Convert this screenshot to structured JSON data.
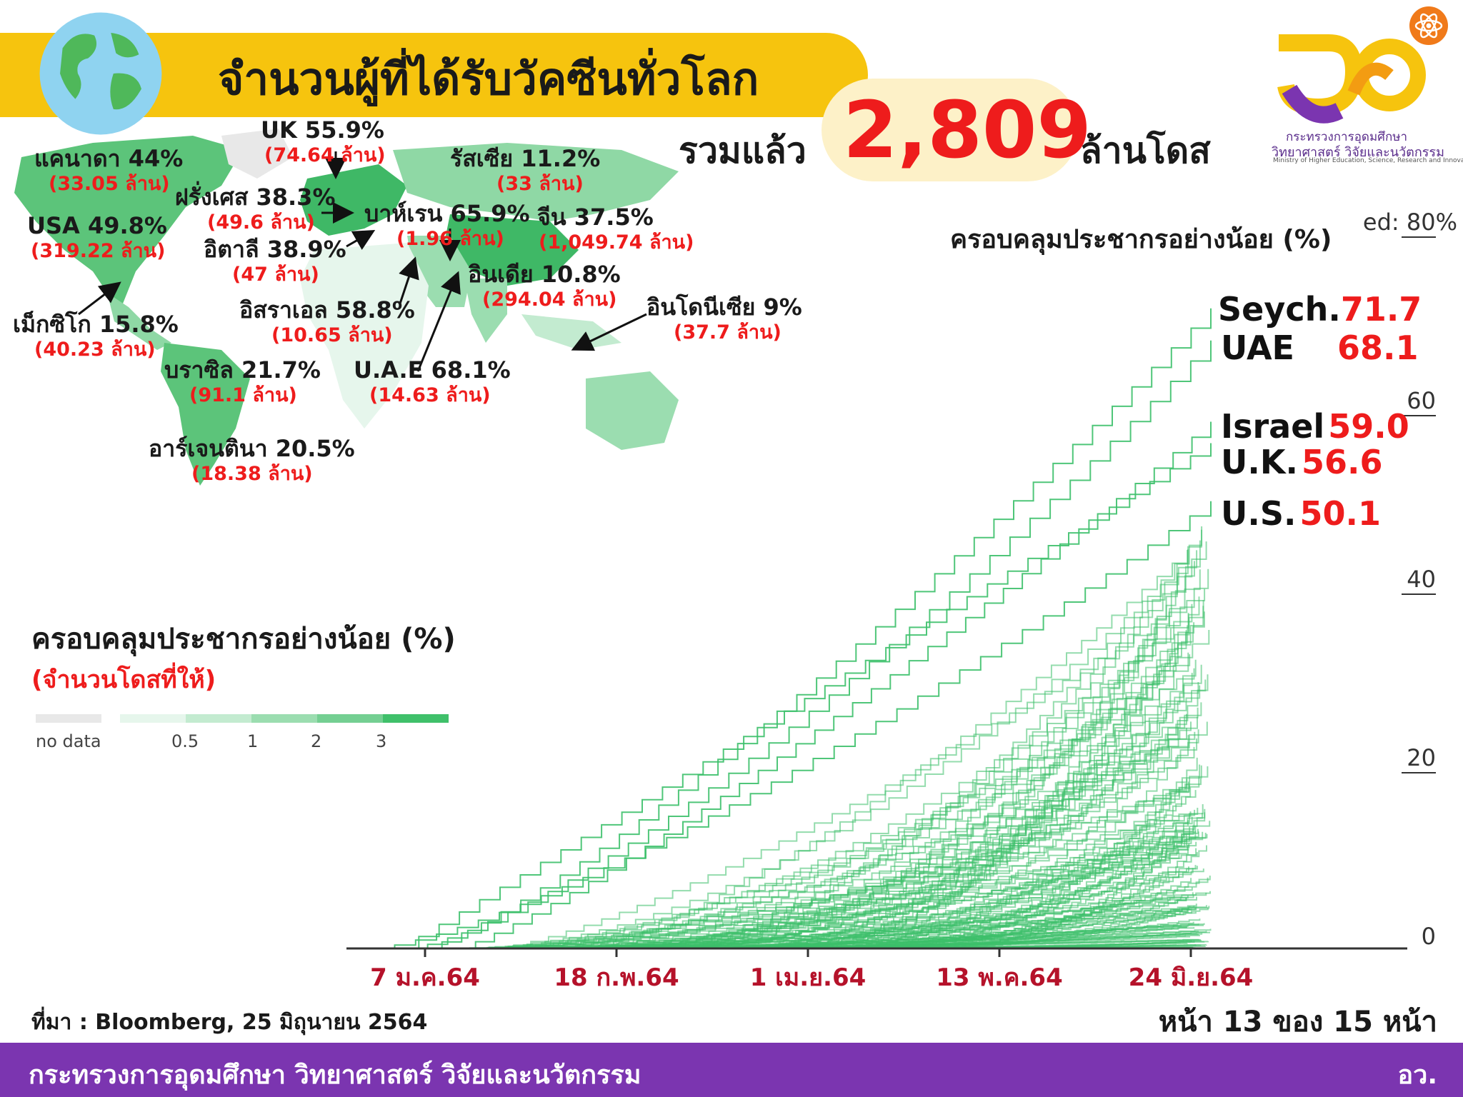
{
  "header": {
    "title": "จำนวนผู้ที่ได้รับวัคซีนทั่วโลก",
    "total_label": "รวมแล้ว",
    "total_value": "2,809",
    "total_unit": "ล้านโดส"
  },
  "logo": {
    "ministry_line1": "กระทรวงการอุดมศึกษา",
    "ministry_line2": "วิทยาศาสตร์ วิจัยและนวัตกรรม",
    "ministry_en": "Ministry of Higher Education, Science, Research and Innovation"
  },
  "countries": [
    {
      "name": "แคนาดา 44%",
      "value": "(33.05 ล้าน)"
    },
    {
      "name": "UK 55.9%",
      "value": "(74.64 ล้าน)"
    },
    {
      "name": "รัสเซีย 11.2%",
      "value": "(33 ล้าน)"
    },
    {
      "name": "ฝรั่งเศส 38.3%",
      "value": "(49.6 ล้าน)"
    },
    {
      "name": "USA 49.8%",
      "value": "(319.22 ล้าน)"
    },
    {
      "name": "บาห์เรน 65.9%",
      "value": "(1.96 ล้าน)"
    },
    {
      "name": "จีน 37.5%",
      "value": "(1,049.74 ล้าน)"
    },
    {
      "name": "อิตาลี 38.9%",
      "value": "(47 ล้าน)"
    },
    {
      "name": "อินเดีย 10.8%",
      "value": "(294.04 ล้าน)"
    },
    {
      "name": "อิสราเอล 58.8%",
      "value": "(10.65 ล้าน)"
    },
    {
      "name": "อินโดนีเซีย 9%",
      "value": "(37.7 ล้าน)"
    },
    {
      "name": "เม็กซิโก 15.8%",
      "value": "(40.23 ล้าน)"
    },
    {
      "name": "บราซิล 21.7%",
      "value": "(91.1 ล้าน)"
    },
    {
      "name": "U.A.E 68.1%",
      "value": "(14.63 ล้าน)"
    },
    {
      "name": "อาร์เจนตินา 20.5%",
      "value": "(18.38 ล้าน)"
    }
  ],
  "legend": {
    "title": "ครอบคลุมประชากรอย่างน้อย (%)",
    "subtitle": "(จำนวนโดสที่ให้)",
    "no_data_label": "no data",
    "no_data_color": "#e8e8e8",
    "steps": [
      {
        "label": "",
        "color": "#e6f6ec"
      },
      {
        "label": "0.5",
        "color": "#c3ebd0"
      },
      {
        "label": "1",
        "color": "#9bddb0"
      },
      {
        "label": "2",
        "color": "#74cf92"
      },
      {
        "label": "3",
        "color": "#3fc06a"
      }
    ]
  },
  "chart_data": {
    "type": "line",
    "title": "ครอบคลุมประชากรอย่างน้อย (%)",
    "y_top_label": "ed: 80%",
    "yticks": [
      "0",
      "20",
      "40",
      "60"
    ],
    "ylim": [
      0,
      80
    ],
    "xticks": [
      "7 ม.ค.64",
      "18 ก.พ.64",
      "1 เม.ย.64",
      "13 พ.ค.64",
      "24 มิ.ย.64"
    ],
    "line_color": "#3cc06a",
    "grid": false,
    "labeled_series": [
      {
        "name": "Seych.",
        "value": "71.7"
      },
      {
        "name": "UAE",
        "value": "68.1"
      },
      {
        "name": "Israel",
        "value": "59.0"
      },
      {
        "name": "U.K.",
        "value": "56.6"
      },
      {
        "name": "U.S.",
        "value": "50.1"
      }
    ]
  },
  "footer": {
    "source": "ที่มา : Bloomberg, 25 มิถุนายน 2564",
    "page": "หน้า 13 ของ 15 หน้า",
    "ministry": "กระทรวงการอุดมศึกษา วิทยาศาสตร์ วิจัยและนวัตกรรม",
    "abbr": "อว."
  }
}
